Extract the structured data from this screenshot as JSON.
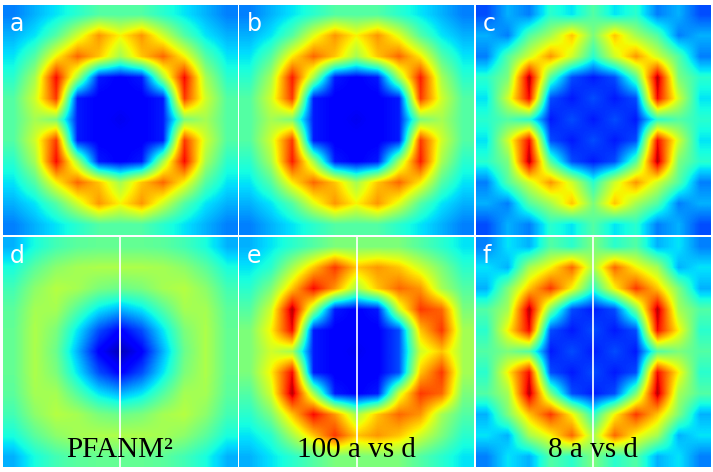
{
  "chart_data": [
    {
      "type": "heatmap",
      "title": "a",
      "color": "jet",
      "tick_labels": false,
      "color_range": [
        0,
        1
      ],
      "cells": [
        [
          0.25,
          0.3,
          0.35,
          0.4,
          0.45,
          0.45,
          0.45,
          0.4,
          0.35,
          0.3,
          0.25
        ],
        [
          0.3,
          0.35,
          0.45,
          0.6,
          0.75,
          0.65,
          0.75,
          0.6,
          0.45,
          0.35,
          0.3
        ],
        [
          0.35,
          0.45,
          0.65,
          0.8,
          0.7,
          0.55,
          0.7,
          0.8,
          0.65,
          0.45,
          0.35
        ],
        [
          0.4,
          0.55,
          0.9,
          0.55,
          0.15,
          0.12,
          0.15,
          0.55,
          0.9,
          0.55,
          0.4
        ],
        [
          0.45,
          0.6,
          0.85,
          0.15,
          0.12,
          0.12,
          0.12,
          0.15,
          0.85,
          0.6,
          0.45
        ],
        [
          0.45,
          0.55,
          0.5,
          0.15,
          0.12,
          0.1,
          0.12,
          0.15,
          0.5,
          0.55,
          0.45
        ],
        [
          0.45,
          0.6,
          0.85,
          0.15,
          0.12,
          0.12,
          0.12,
          0.15,
          0.85,
          0.6,
          0.45
        ],
        [
          0.4,
          0.55,
          0.9,
          0.55,
          0.15,
          0.12,
          0.15,
          0.55,
          0.9,
          0.55,
          0.4
        ],
        [
          0.35,
          0.45,
          0.65,
          0.8,
          0.7,
          0.55,
          0.7,
          0.8,
          0.65,
          0.45,
          0.35
        ],
        [
          0.3,
          0.35,
          0.45,
          0.6,
          0.75,
          0.65,
          0.75,
          0.6,
          0.45,
          0.35,
          0.3
        ],
        [
          0.25,
          0.3,
          0.35,
          0.4,
          0.45,
          0.45,
          0.45,
          0.4,
          0.35,
          0.3,
          0.25
        ]
      ]
    },
    {
      "type": "heatmap",
      "title": "b",
      "color": "jet",
      "tick_labels": false,
      "color_range": [
        0,
        1
      ],
      "cells": [
        [
          0.25,
          0.3,
          0.35,
          0.4,
          0.45,
          0.45,
          0.45,
          0.4,
          0.35,
          0.3,
          0.25
        ],
        [
          0.3,
          0.35,
          0.45,
          0.62,
          0.75,
          0.65,
          0.75,
          0.62,
          0.45,
          0.35,
          0.3
        ],
        [
          0.35,
          0.45,
          0.66,
          0.8,
          0.7,
          0.55,
          0.7,
          0.8,
          0.66,
          0.45,
          0.35
        ],
        [
          0.4,
          0.55,
          0.88,
          0.55,
          0.15,
          0.12,
          0.15,
          0.55,
          0.88,
          0.55,
          0.4
        ],
        [
          0.45,
          0.6,
          0.85,
          0.15,
          0.12,
          0.12,
          0.12,
          0.15,
          0.85,
          0.6,
          0.45
        ],
        [
          0.45,
          0.55,
          0.5,
          0.15,
          0.12,
          0.1,
          0.12,
          0.15,
          0.5,
          0.55,
          0.45
        ],
        [
          0.45,
          0.6,
          0.85,
          0.15,
          0.12,
          0.12,
          0.12,
          0.15,
          0.85,
          0.6,
          0.45
        ],
        [
          0.4,
          0.55,
          0.88,
          0.55,
          0.15,
          0.12,
          0.15,
          0.55,
          0.88,
          0.55,
          0.4
        ],
        [
          0.35,
          0.45,
          0.66,
          0.8,
          0.7,
          0.55,
          0.7,
          0.8,
          0.66,
          0.45,
          0.35
        ],
        [
          0.3,
          0.35,
          0.45,
          0.62,
          0.75,
          0.65,
          0.75,
          0.62,
          0.45,
          0.35,
          0.3
        ],
        [
          0.25,
          0.3,
          0.35,
          0.4,
          0.45,
          0.45,
          0.45,
          0.4,
          0.35,
          0.3,
          0.25
        ]
      ]
    },
    {
      "type": "heatmap",
      "title": "c",
      "color": "jet",
      "tick_labels": false,
      "color_range": [
        0,
        1
      ],
      "cells": [
        [
          0.2,
          0.3,
          0.25,
          0.4,
          0.35,
          0.45,
          0.35,
          0.4,
          0.25,
          0.3,
          0.2
        ],
        [
          0.3,
          0.25,
          0.45,
          0.55,
          0.7,
          0.5,
          0.7,
          0.55,
          0.45,
          0.25,
          0.3
        ],
        [
          0.25,
          0.45,
          0.6,
          0.75,
          0.6,
          0.4,
          0.6,
          0.75,
          0.6,
          0.45,
          0.25
        ],
        [
          0.4,
          0.5,
          0.95,
          0.45,
          0.2,
          0.15,
          0.2,
          0.45,
          0.95,
          0.5,
          0.4
        ],
        [
          0.35,
          0.6,
          0.9,
          0.2,
          0.15,
          0.2,
          0.15,
          0.2,
          0.9,
          0.6,
          0.35
        ],
        [
          0.4,
          0.45,
          0.4,
          0.15,
          0.2,
          0.15,
          0.2,
          0.15,
          0.4,
          0.45,
          0.4
        ],
        [
          0.35,
          0.6,
          0.9,
          0.2,
          0.15,
          0.2,
          0.15,
          0.2,
          0.9,
          0.6,
          0.35
        ],
        [
          0.4,
          0.5,
          0.95,
          0.45,
          0.2,
          0.15,
          0.2,
          0.45,
          0.95,
          0.5,
          0.4
        ],
        [
          0.25,
          0.45,
          0.6,
          0.75,
          0.6,
          0.4,
          0.6,
          0.75,
          0.6,
          0.45,
          0.25
        ],
        [
          0.3,
          0.25,
          0.45,
          0.55,
          0.7,
          0.5,
          0.7,
          0.55,
          0.45,
          0.25,
          0.3
        ],
        [
          0.2,
          0.3,
          0.25,
          0.4,
          0.35,
          0.45,
          0.35,
          0.4,
          0.25,
          0.3,
          0.2
        ]
      ]
    },
    {
      "type": "heatmap",
      "title": "d",
      "annotation": "PFANM²",
      "color": "jet",
      "tick_labels": false,
      "color_range": [
        0,
        1
      ],
      "cells": [
        [
          0.3,
          0.38,
          0.43,
          0.46,
          0.47,
          0.47,
          0.47,
          0.46,
          0.43,
          0.38,
          0.3
        ],
        [
          0.38,
          0.46,
          0.52,
          0.55,
          0.56,
          0.56,
          0.56,
          0.55,
          0.52,
          0.46,
          0.38
        ],
        [
          0.43,
          0.52,
          0.57,
          0.55,
          0.5,
          0.48,
          0.5,
          0.55,
          0.57,
          0.52,
          0.43
        ],
        [
          0.46,
          0.55,
          0.55,
          0.45,
          0.35,
          0.3,
          0.35,
          0.45,
          0.55,
          0.55,
          0.46
        ],
        [
          0.47,
          0.56,
          0.5,
          0.35,
          0.2,
          0.12,
          0.2,
          0.35,
          0.5,
          0.56,
          0.47
        ],
        [
          0.47,
          0.56,
          0.48,
          0.3,
          0.12,
          0.05,
          0.12,
          0.3,
          0.48,
          0.56,
          0.47
        ],
        [
          0.47,
          0.56,
          0.5,
          0.35,
          0.2,
          0.12,
          0.2,
          0.35,
          0.5,
          0.56,
          0.47
        ],
        [
          0.46,
          0.55,
          0.55,
          0.45,
          0.35,
          0.3,
          0.35,
          0.45,
          0.55,
          0.55,
          0.46
        ],
        [
          0.43,
          0.52,
          0.57,
          0.55,
          0.5,
          0.48,
          0.5,
          0.55,
          0.57,
          0.52,
          0.43
        ],
        [
          0.38,
          0.46,
          0.52,
          0.55,
          0.56,
          0.56,
          0.56,
          0.55,
          0.52,
          0.46,
          0.38
        ],
        [
          0.3,
          0.38,
          0.43,
          0.46,
          0.47,
          0.47,
          0.47,
          0.46,
          0.43,
          0.38,
          0.3
        ]
      ]
    },
    {
      "type": "heatmap",
      "title": "e",
      "annotation": "100 a vs d",
      "color": "jet",
      "tick_labels": false,
      "color_range": [
        0,
        1
      ],
      "cells": [
        [
          0.3,
          0.35,
          0.4,
          0.45,
          0.5,
          0.5,
          0.5,
          0.5,
          0.45,
          0.4,
          0.35
        ],
        [
          0.35,
          0.4,
          0.55,
          0.7,
          0.85,
          0.7,
          0.75,
          0.7,
          0.6,
          0.5,
          0.4
        ],
        [
          0.4,
          0.5,
          0.7,
          0.9,
          0.75,
          0.55,
          0.7,
          0.8,
          0.75,
          0.55,
          0.45
        ],
        [
          0.45,
          0.6,
          0.95,
          0.55,
          0.15,
          0.12,
          0.15,
          0.6,
          0.85,
          0.8,
          0.5
        ],
        [
          0.5,
          0.65,
          0.9,
          0.15,
          0.12,
          0.12,
          0.12,
          0.2,
          0.7,
          0.85,
          0.55
        ],
        [
          0.5,
          0.6,
          0.55,
          0.15,
          0.12,
          0.1,
          0.12,
          0.2,
          0.6,
          0.7,
          0.55
        ],
        [
          0.5,
          0.65,
          0.9,
          0.15,
          0.12,
          0.12,
          0.12,
          0.2,
          0.7,
          0.85,
          0.55
        ],
        [
          0.45,
          0.6,
          0.95,
          0.55,
          0.15,
          0.12,
          0.15,
          0.6,
          0.85,
          0.8,
          0.5
        ],
        [
          0.4,
          0.5,
          0.7,
          0.9,
          0.75,
          0.55,
          0.7,
          0.8,
          0.75,
          0.55,
          0.45
        ],
        [
          0.35,
          0.4,
          0.55,
          0.7,
          0.85,
          0.7,
          0.75,
          0.7,
          0.6,
          0.5,
          0.4
        ],
        [
          0.3,
          0.35,
          0.4,
          0.45,
          0.5,
          0.5,
          0.5,
          0.5,
          0.45,
          0.4,
          0.35
        ]
      ]
    },
    {
      "type": "heatmap",
      "title": "f",
      "annotation": "8 a vs d",
      "color": "jet",
      "tick_labels": false,
      "color_range": [
        0,
        1
      ],
      "cells": [
        [
          0.25,
          0.35,
          0.3,
          0.45,
          0.4,
          0.5,
          0.4,
          0.45,
          0.3,
          0.35,
          0.25
        ],
        [
          0.35,
          0.3,
          0.55,
          0.65,
          0.8,
          0.55,
          0.8,
          0.65,
          0.55,
          0.3,
          0.35
        ],
        [
          0.3,
          0.5,
          0.7,
          0.85,
          0.65,
          0.4,
          0.65,
          0.85,
          0.7,
          0.5,
          0.3
        ],
        [
          0.45,
          0.55,
          0.95,
          0.5,
          0.2,
          0.15,
          0.2,
          0.5,
          0.95,
          0.55,
          0.45
        ],
        [
          0.4,
          0.65,
          0.9,
          0.2,
          0.15,
          0.2,
          0.15,
          0.2,
          0.9,
          0.65,
          0.4
        ],
        [
          0.45,
          0.5,
          0.45,
          0.15,
          0.2,
          0.15,
          0.2,
          0.15,
          0.45,
          0.5,
          0.45
        ],
        [
          0.4,
          0.65,
          0.9,
          0.2,
          0.15,
          0.2,
          0.15,
          0.2,
          0.9,
          0.65,
          0.4
        ],
        [
          0.45,
          0.55,
          0.95,
          0.5,
          0.2,
          0.15,
          0.2,
          0.5,
          0.95,
          0.55,
          0.45
        ],
        [
          0.3,
          0.5,
          0.7,
          0.85,
          0.65,
          0.4,
          0.65,
          0.85,
          0.7,
          0.5,
          0.3
        ],
        [
          0.35,
          0.3,
          0.55,
          0.65,
          0.8,
          0.55,
          0.8,
          0.65,
          0.55,
          0.3,
          0.35
        ],
        [
          0.25,
          0.35,
          0.3,
          0.45,
          0.4,
          0.5,
          0.4,
          0.45,
          0.3,
          0.35,
          0.25
        ]
      ]
    }
  ]
}
